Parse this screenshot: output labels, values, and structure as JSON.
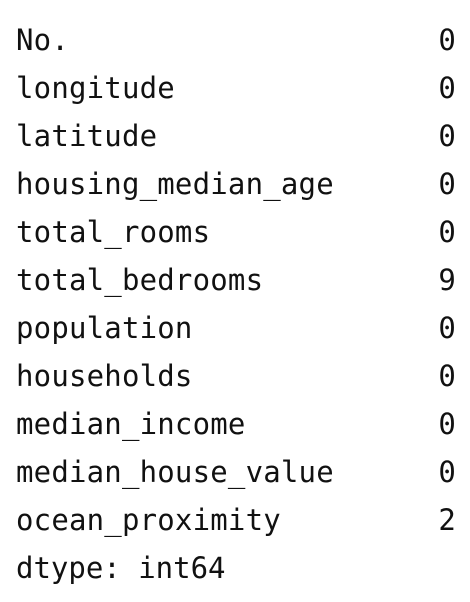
{
  "series_output": {
    "rows": [
      {
        "label": "No.",
        "value": "0"
      },
      {
        "label": "longitude",
        "value": "0"
      },
      {
        "label": "latitude",
        "value": "0"
      },
      {
        "label": "housing_median_age",
        "value": "0"
      },
      {
        "label": "total_rooms",
        "value": "0"
      },
      {
        "label": "total_bedrooms",
        "value": "9"
      },
      {
        "label": "population",
        "value": "0"
      },
      {
        "label": "households",
        "value": "0"
      },
      {
        "label": "median_income",
        "value": "0"
      },
      {
        "label": "median_house_value",
        "value": "0"
      },
      {
        "label": "ocean_proximity",
        "value": "2"
      }
    ],
    "dtype_line": "dtype: int64"
  }
}
